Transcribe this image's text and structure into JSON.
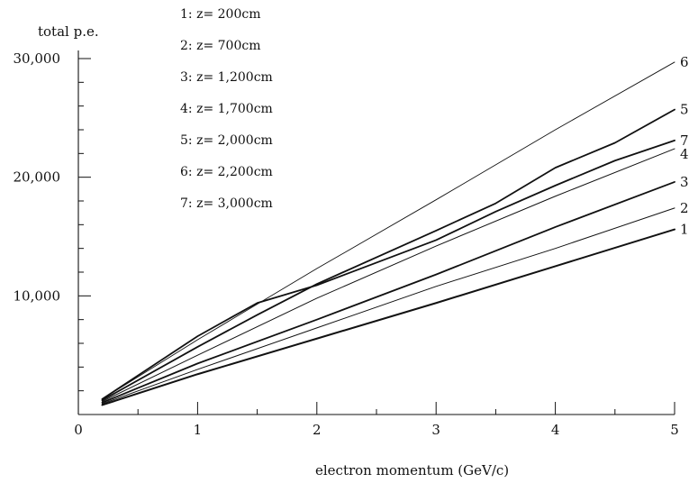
{
  "chart_data": {
    "type": "line",
    "ylabel": "total p.e.",
    "xlabel": "electron momentum (GeV/c)",
    "xlim": [
      0,
      5
    ],
    "ylim": [
      0,
      30000
    ],
    "x_ticks": [
      0,
      1,
      2,
      3,
      4,
      5
    ],
    "x_tick_labels": [
      "0",
      "1",
      "2",
      "3",
      "4",
      "5"
    ],
    "y_ticks": [
      10000,
      20000,
      30000
    ],
    "y_tick_labels": [
      "10,000",
      "20,000",
      "30,000"
    ],
    "grid": false,
    "legend_position": "top-left",
    "legend": [
      "1: z= 200cm",
      "2: z= 700cm",
      "3: z= 1,200cm",
      "4: z= 1,700cm",
      "5: z= 2,000cm",
      "6: z= 2,200cm",
      "7: z= 3,000cm"
    ],
    "series": [
      {
        "name": "1",
        "stroke_width": 2.0,
        "x": [
          0.2,
          1,
          2,
          3,
          4,
          5
        ],
        "y": [
          800,
          3400,
          6400,
          9400,
          12500,
          15600
        ]
      },
      {
        "name": "2",
        "stroke_width": 1.0,
        "x": [
          0.2,
          1,
          2,
          3,
          4,
          5
        ],
        "y": [
          900,
          3800,
          7300,
          10800,
          14000,
          17400
        ]
      },
      {
        "name": "3",
        "stroke_width": 1.8,
        "x": [
          0.2,
          1,
          2,
          3,
          4,
          5
        ],
        "y": [
          1000,
          4300,
          8000,
          11800,
          15800,
          19600
        ]
      },
      {
        "name": "4",
        "stroke_width": 1.0,
        "x": [
          0.2,
          1,
          2,
          3,
          4,
          5
        ],
        "y": [
          1100,
          5000,
          9800,
          14200,
          18400,
          22400
        ]
      },
      {
        "name": "5",
        "stroke_width": 1.8,
        "x": [
          0.2,
          1,
          1.5,
          2,
          3,
          3.5,
          4,
          4.5,
          5
        ],
        "y": [
          1200,
          5700,
          8400,
          11000,
          15500,
          17800,
          20800,
          22900,
          25700
        ]
      },
      {
        "name": "6",
        "stroke_width": 0.9,
        "x": [
          0.2,
          1,
          2,
          3,
          4,
          5
        ],
        "y": [
          1300,
          6300,
          12300,
          18100,
          24000,
          29700
        ]
      },
      {
        "name": "7",
        "stroke_width": 1.8,
        "x": [
          0.2,
          1,
          1.5,
          2,
          3,
          3.5,
          4,
          4.5,
          5
        ],
        "y": [
          1300,
          6600,
          9400,
          10900,
          14700,
          17100,
          19300,
          21400,
          23100
        ]
      }
    ]
  }
}
